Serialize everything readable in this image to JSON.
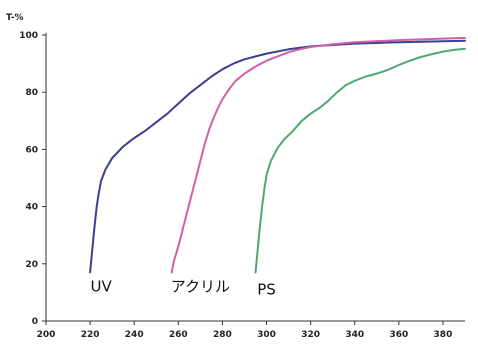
{
  "chart_data": {
    "type": "line",
    "title": "",
    "ylabel": "T-%",
    "xlabel": "",
    "xlim": [
      200,
      390
    ],
    "ylim": [
      0,
      100
    ],
    "x_ticks": [
      200,
      220,
      240,
      260,
      280,
      300,
      320,
      340,
      360,
      380
    ],
    "y_ticks": [
      0,
      20,
      40,
      60,
      80,
      100
    ],
    "grid": false,
    "legend": "none",
    "series": [
      {
        "name": "UV",
        "color": "#3b3f8f",
        "points": [
          [
            220,
            17
          ],
          [
            221,
            25
          ],
          [
            222,
            33
          ],
          [
            223,
            40
          ],
          [
            224,
            45
          ],
          [
            225,
            49
          ],
          [
            227,
            53
          ],
          [
            230,
            57
          ],
          [
            235,
            61
          ],
          [
            240,
            64
          ],
          [
            245,
            66.5
          ],
          [
            250,
            69.5
          ],
          [
            255,
            72.5
          ],
          [
            260,
            76
          ],
          [
            265,
            79.5
          ],
          [
            270,
            82.5
          ],
          [
            275,
            85.5
          ],
          [
            280,
            88
          ],
          [
            285,
            90
          ],
          [
            290,
            91.5
          ],
          [
            300,
            93.5
          ],
          [
            310,
            95
          ],
          [
            320,
            96
          ],
          [
            340,
            97
          ],
          [
            360,
            97.5
          ],
          [
            390,
            98
          ]
        ]
      },
      {
        "name": "アクリル",
        "color": "#d060a8",
        "points": [
          [
            257,
            17
          ],
          [
            258,
            21
          ],
          [
            260,
            26
          ],
          [
            262,
            32
          ],
          [
            264,
            38
          ],
          [
            266,
            44
          ],
          [
            268,
            50
          ],
          [
            270,
            56
          ],
          [
            272,
            62
          ],
          [
            274,
            67
          ],
          [
            276,
            71
          ],
          [
            278,
            74.5
          ],
          [
            280,
            77.5
          ],
          [
            283,
            81
          ],
          [
            286,
            84
          ],
          [
            290,
            86.5
          ],
          [
            295,
            89
          ],
          [
            300,
            91
          ],
          [
            305,
            92.5
          ],
          [
            310,
            94
          ],
          [
            315,
            95
          ],
          [
            320,
            95.8
          ],
          [
            330,
            96.8
          ],
          [
            340,
            97.5
          ],
          [
            360,
            98.2
          ],
          [
            390,
            99
          ]
        ]
      },
      {
        "name": "PS",
        "color": "#4fa870",
        "points": [
          [
            295,
            17
          ],
          [
            296,
            25
          ],
          [
            297,
            33
          ],
          [
            298,
            40
          ],
          [
            299,
            46
          ],
          [
            300,
            51
          ],
          [
            302,
            56
          ],
          [
            305,
            60.5
          ],
          [
            308,
            63.5
          ],
          [
            312,
            66.5
          ],
          [
            316,
            70
          ],
          [
            320,
            72.5
          ],
          [
            324,
            74.5
          ],
          [
            328,
            77
          ],
          [
            332,
            80
          ],
          [
            336,
            82.5
          ],
          [
            340,
            84
          ],
          [
            345,
            85.5
          ],
          [
            350,
            86.5
          ],
          [
            355,
            87.8
          ],
          [
            360,
            89.5
          ],
          [
            365,
            91
          ],
          [
            370,
            92.3
          ],
          [
            375,
            93.3
          ],
          [
            380,
            94.2
          ],
          [
            385,
            94.8
          ],
          [
            390,
            95.2
          ]
        ]
      }
    ],
    "annotations": [
      {
        "text": "UV",
        "x": 225,
        "y": 12
      },
      {
        "text": "アクリル",
        "x": 270,
        "y": 12
      },
      {
        "text": "PS",
        "x": 300,
        "y": 11
      }
    ]
  }
}
